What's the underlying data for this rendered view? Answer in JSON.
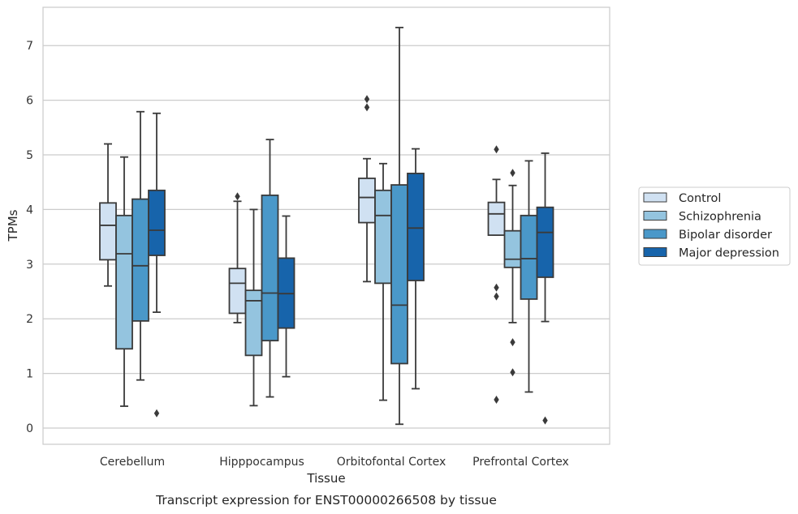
{
  "chart_data": {
    "type": "box",
    "title": "",
    "caption": "Transcript expression for ENST00000266508 by tissue",
    "xlabel": "Tissue",
    "ylabel": "TPMs",
    "ylim": [
      -0.3,
      7.7
    ],
    "yticks": [
      0,
      1,
      2,
      3,
      4,
      5,
      6,
      7
    ],
    "grid": "horizontal",
    "legend_position": "right",
    "categories": [
      "Cerebellum",
      "Hipppocampus",
      "Orbitofontal Cortex",
      "Prefrontal Cortex"
    ],
    "series": [
      {
        "name": "Control",
        "color": "#d0e1f2",
        "boxes": [
          {
            "whisker_low": 2.6,
            "q1": 3.08,
            "median": 3.71,
            "q3": 4.12,
            "whisker_high": 5.2,
            "outliers": []
          },
          {
            "whisker_low": 1.93,
            "q1": 2.1,
            "median": 2.65,
            "q3": 2.92,
            "whisker_high": 4.15,
            "outliers": [
              4.24
            ]
          },
          {
            "whisker_low": 2.68,
            "q1": 3.76,
            "median": 4.22,
            "q3": 4.57,
            "whisker_high": 4.93,
            "outliers": [
              5.87,
              6.02
            ]
          },
          {
            "whisker_low": 3.53,
            "q1": 3.53,
            "median": 3.92,
            "q3": 4.13,
            "whisker_high": 4.55,
            "outliers": [
              5.1,
              2.57,
              2.41,
              0.52
            ]
          }
        ]
      },
      {
        "name": "Schizophrenia",
        "color": "#94c4df",
        "boxes": [
          {
            "whisker_low": 0.4,
            "q1": 1.45,
            "median": 3.19,
            "q3": 3.89,
            "whisker_high": 4.96,
            "outliers": []
          },
          {
            "whisker_low": 0.41,
            "q1": 1.33,
            "median": 2.33,
            "q3": 2.52,
            "whisker_high": 4.0,
            "outliers": []
          },
          {
            "whisker_low": 0.51,
            "q1": 2.65,
            "median": 3.89,
            "q3": 4.35,
            "whisker_high": 4.84,
            "outliers": []
          },
          {
            "whisker_low": 1.93,
            "q1": 2.94,
            "median": 3.09,
            "q3": 3.61,
            "whisker_high": 4.44,
            "outliers": [
              4.67,
              1.57,
              1.02
            ]
          }
        ]
      },
      {
        "name": "Bipolar disorder",
        "color": "#4a98c9",
        "boxes": [
          {
            "whisker_low": 0.88,
            "q1": 1.96,
            "median": 2.97,
            "q3": 4.19,
            "whisker_high": 5.79,
            "outliers": []
          },
          {
            "whisker_low": 0.57,
            "q1": 1.6,
            "median": 2.47,
            "q3": 4.26,
            "whisker_high": 5.28,
            "outliers": []
          },
          {
            "whisker_low": 0.07,
            "q1": 1.18,
            "median": 2.25,
            "q3": 4.45,
            "whisker_high": 7.33,
            "outliers": []
          },
          {
            "whisker_low": 0.66,
            "q1": 2.36,
            "median": 3.1,
            "q3": 3.89,
            "whisker_high": 4.89,
            "outliers": []
          }
        ]
      },
      {
        "name": "Major depression",
        "color": "#1764ab",
        "boxes": [
          {
            "whisker_low": 2.12,
            "q1": 3.16,
            "median": 3.62,
            "q3": 4.35,
            "whisker_high": 5.76,
            "outliers": [
              0.27
            ]
          },
          {
            "whisker_low": 0.94,
            "q1": 1.83,
            "median": 2.46,
            "q3": 3.11,
            "whisker_high": 3.88,
            "outliers": []
          },
          {
            "whisker_low": 0.72,
            "q1": 2.7,
            "median": 3.66,
            "q3": 4.66,
            "whisker_high": 5.11,
            "outliers": []
          },
          {
            "whisker_low": 1.95,
            "q1": 2.76,
            "median": 3.58,
            "q3": 4.04,
            "whisker_high": 5.03,
            "outliers": [
              0.14
            ]
          }
        ]
      }
    ]
  }
}
